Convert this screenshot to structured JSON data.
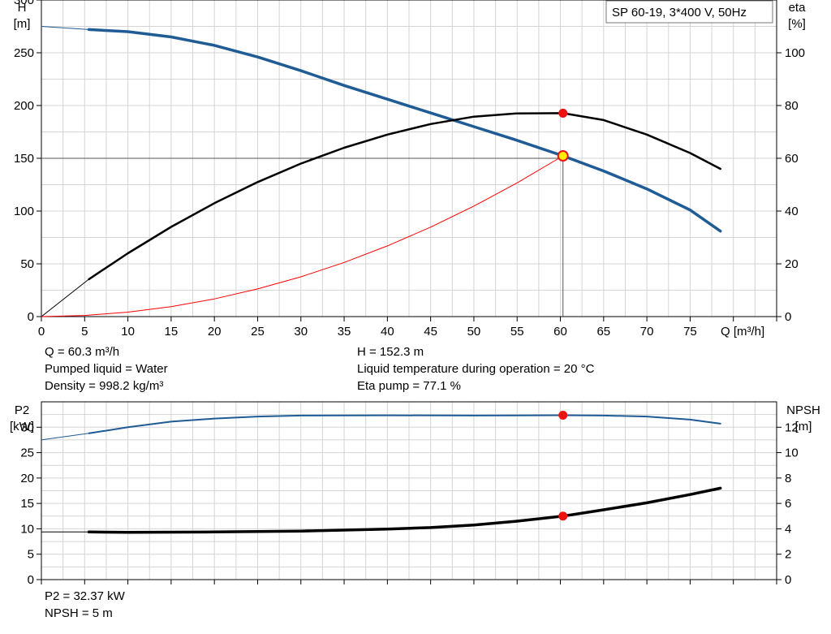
{
  "chart_data": [
    {
      "type": "line",
      "title": "SP 60-19, 3*400 V, 50Hz",
      "xlabel": "Q [m³/h]",
      "x_ticks": [
        "0",
        "5",
        "10",
        "15",
        "20",
        "25",
        "30",
        "35",
        "40",
        "45",
        "50",
        "55",
        "60",
        "65",
        "70",
        "75"
      ],
      "xlim": [
        0,
        85
      ],
      "left_axis": {
        "label_line1": "H",
        "label_line2": "[m]",
        "ylim": [
          0,
          300
        ],
        "ticks": [
          "0",
          "50",
          "100",
          "150",
          "200",
          "250",
          "300"
        ]
      },
      "right_axis": {
        "label_line1": "eta",
        "label_line2": "[%]",
        "ylim": [
          0,
          120
        ],
        "ticks": [
          "0",
          "20",
          "40",
          "60",
          "80",
          "100"
        ]
      },
      "series": [
        {
          "axis": "left",
          "color": "#1f5b94",
          "points": [
            [
              5.5,
              272
            ],
            [
              10,
              270
            ],
            [
              15,
              265
            ],
            [
              20,
              257
            ],
            [
              25,
              246
            ],
            [
              30,
              233
            ],
            [
              35,
              219
            ],
            [
              40,
              206
            ],
            [
              45,
              193
            ],
            [
              50,
              180
            ],
            [
              55,
              167
            ],
            [
              60.3,
              152.3
            ],
            [
              65,
              138
            ],
            [
              70,
              121
            ],
            [
              75,
              101
            ],
            [
              78.5,
              81
            ]
          ],
          "extrapolation": [
            [
              0,
              275
            ],
            [
              5.5,
              272
            ]
          ]
        },
        {
          "axis": "right",
          "color": "#000000",
          "points": [
            [
              5.5,
              14.2
            ],
            [
              10,
              24
            ],
            [
              15,
              34
            ],
            [
              20,
              43
            ],
            [
              25,
              51
            ],
            [
              30,
              58
            ],
            [
              35,
              64
            ],
            [
              40,
              69
            ],
            [
              45,
              73
            ],
            [
              50,
              75.8
            ],
            [
              55,
              77
            ],
            [
              60.3,
              77.1
            ],
            [
              65,
              74.5
            ],
            [
              70,
              69
            ],
            [
              75,
              62
            ],
            [
              78.5,
              56
            ]
          ],
          "extrapolation": [
            [
              0,
              0
            ],
            [
              5.5,
              14.2
            ]
          ]
        },
        {
          "axis": "left",
          "color": "#ff0000",
          "role": "system-curve",
          "points": [
            [
              0,
              0
            ],
            [
              5,
              1.1
            ],
            [
              10,
              4.2
            ],
            [
              15,
              9.4
            ],
            [
              20,
              16.8
            ],
            [
              25,
              26.2
            ],
            [
              30,
              37.7
            ],
            [
              35,
              51.3
            ],
            [
              40,
              67
            ],
            [
              45,
              84.8
            ],
            [
              50,
              104.7
            ],
            [
              55,
              126.7
            ],
            [
              60.3,
              152.3
            ]
          ]
        }
      ],
      "duty_point": {
        "Q": 60.3,
        "H": 152.3,
        "eta": 77.1
      },
      "operating_line_H": 150
    },
    {
      "type": "line",
      "xlim": [
        0,
        85
      ],
      "left_axis": {
        "label_line1": "P2",
        "label_line2": "[kW]",
        "ylim": [
          0,
          35
        ],
        "ticks": [
          "0",
          "5",
          "10",
          "15",
          "20",
          "25",
          "30"
        ]
      },
      "right_axis": {
        "label_line1": "NPSH",
        "label_line2": "[m]",
        "ylim": [
          0,
          14
        ],
        "ticks": [
          "0",
          "2",
          "4",
          "6",
          "8",
          "10",
          "12"
        ]
      },
      "series": [
        {
          "axis": "left",
          "color": "#1f5b94",
          "points": [
            [
              5.5,
              28.8
            ],
            [
              10,
              30
            ],
            [
              15,
              31.1
            ],
            [
              20,
              31.7
            ],
            [
              25,
              32.1
            ],
            [
              30,
              32.3
            ],
            [
              40,
              32.35
            ],
            [
              50,
              32.3
            ],
            [
              60.3,
              32.37
            ],
            [
              65,
              32.3
            ],
            [
              70,
              32.1
            ],
            [
              75,
              31.5
            ],
            [
              78.5,
              30.7
            ]
          ],
          "extrapolation": [
            [
              0,
              27.5
            ],
            [
              5.5,
              28.8
            ]
          ]
        },
        {
          "axis": "right",
          "color": "#000000",
          "points": [
            [
              5.5,
              3.75
            ],
            [
              10,
              3.73
            ],
            [
              20,
              3.75
            ],
            [
              30,
              3.82
            ],
            [
              40,
              3.98
            ],
            [
              45,
              4.1
            ],
            [
              50,
              4.3
            ],
            [
              55,
              4.6
            ],
            [
              60.3,
              5.0
            ],
            [
              65,
              5.5
            ],
            [
              70,
              6.05
            ],
            [
              75,
              6.7
            ],
            [
              78.5,
              7.2
            ]
          ],
          "extrapolation": [
            [
              0,
              3.75
            ],
            [
              5.5,
              3.75
            ]
          ]
        }
      ],
      "duty_point": {
        "Q": 60.3,
        "P2": 32.37,
        "NPSH": 5
      }
    }
  ],
  "info_top": {
    "q": "Q = 60.3 m³/h",
    "liquid": "Pumped liquid = Water",
    "density": "Density = 998.2 kg/m³",
    "h": "H = 152.3 m",
    "temperature": "Liquid temperature during operation = 20 °C",
    "eta": "Eta pump = 77.1 %"
  },
  "info_bottom": {
    "p2": "P2 = 32.37 kW",
    "npsh": "NPSH = 5 m"
  }
}
